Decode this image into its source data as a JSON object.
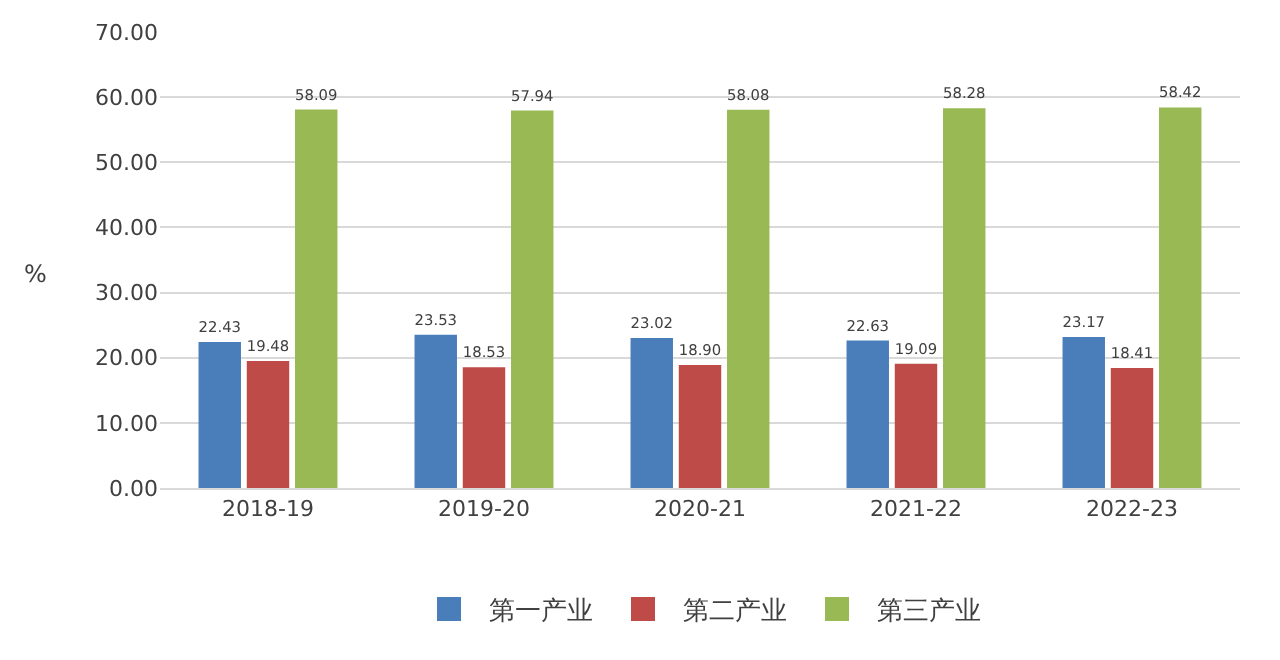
{
  "chart_data": {
    "type": "bar",
    "ylabel": "%",
    "categories": [
      "2018-19",
      "2019-20",
      "2020-21",
      "2021-22",
      "2022-23"
    ],
    "series": [
      {
        "name": "第一产业",
        "color": "#4a7ebb",
        "values": [
          22.43,
          23.53,
          23.02,
          22.63,
          23.17
        ],
        "value_labels": [
          "22.43",
          "23.53",
          "23.02",
          "22.63",
          "23.17"
        ]
      },
      {
        "name": "第二产业",
        "color": "#be4b48",
        "values": [
          19.48,
          18.53,
          18.9,
          19.09,
          18.41
        ],
        "value_labels": [
          "19.48",
          "18.53",
          "18.90",
          "19.09",
          "18.41"
        ]
      },
      {
        "name": "第三产业",
        "color": "#98b954",
        "values": [
          58.09,
          57.94,
          58.08,
          58.28,
          58.42
        ],
        "value_labels": [
          "58.09",
          "57.94",
          "58.08",
          "58.28",
          "58.42"
        ]
      }
    ],
    "ylim": [
      0,
      70
    ],
    "yticks": [
      {
        "value": 0,
        "label": "0.00"
      },
      {
        "value": 10,
        "label": "10.00"
      },
      {
        "value": 20,
        "label": "20.00"
      },
      {
        "value": 30,
        "label": "30.00"
      },
      {
        "value": 40,
        "label": "40.00"
      },
      {
        "value": 50,
        "label": "50.00"
      },
      {
        "value": 60,
        "label": "60.00"
      },
      {
        "value": 70,
        "label": "70.00"
      }
    ],
    "grid": "y",
    "legend": "bottom"
  }
}
